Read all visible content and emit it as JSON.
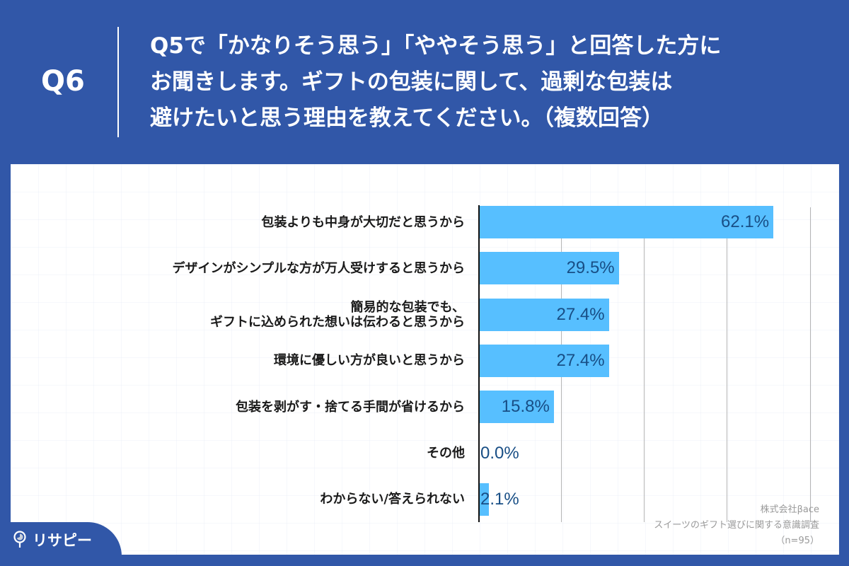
{
  "header": {
    "question_number": "Q6",
    "question_text": "Q5で「かなりそう思う」「ややそう思う」と回答した方に\nお聞きします。ギフトの包装に関して、過剰な包装は\n避けたいと思う理由を教えてください。（複数回答）"
  },
  "colors": {
    "background": "#3157a8",
    "bar": "#57bfff",
    "value_text": "#184e85",
    "label_text": "#1a1a1a",
    "source_text": "#9a9a9a"
  },
  "chart_data": {
    "type": "bar",
    "orientation": "horizontal",
    "title": "Q5で「かなりそう思う」「ややそう思う」と回答した方にお聞きします。ギフトの包装に関して、過剰な包装は避けたいと思う理由を教えてください。（複数回答）",
    "xlabel": "",
    "ylabel": "",
    "unit": "%",
    "xlim": [
      0,
      70
    ],
    "grid": true,
    "gridline_interval": 17.5,
    "categories": [
      "包装よりも中身が大切だと思うから",
      "デザインがシンプルな方が万人受けすると思うから",
      "簡易的な包装でも、\nギフトに込められた想いは伝わると思うから",
      "環境に優しい方が良いと思うから",
      "包装を剥がす・捨てる手間が省けるから",
      "その他",
      "わからない/答えられない"
    ],
    "values": [
      62.1,
      29.5,
      27.4,
      27.4,
      15.8,
      0.0,
      2.1
    ],
    "value_labels": [
      "62.1%",
      "29.5%",
      "27.4%",
      "27.4%",
      "15.8%",
      "0.0%",
      "2.1%"
    ],
    "legend": null
  },
  "source": {
    "company": "株式会社βace",
    "survey": "スイーツのギフト選びに関する意識調査",
    "sample": "（n=95）"
  },
  "logo": {
    "text": "リサピー",
    "icon": "map-pin-pie-icon"
  }
}
